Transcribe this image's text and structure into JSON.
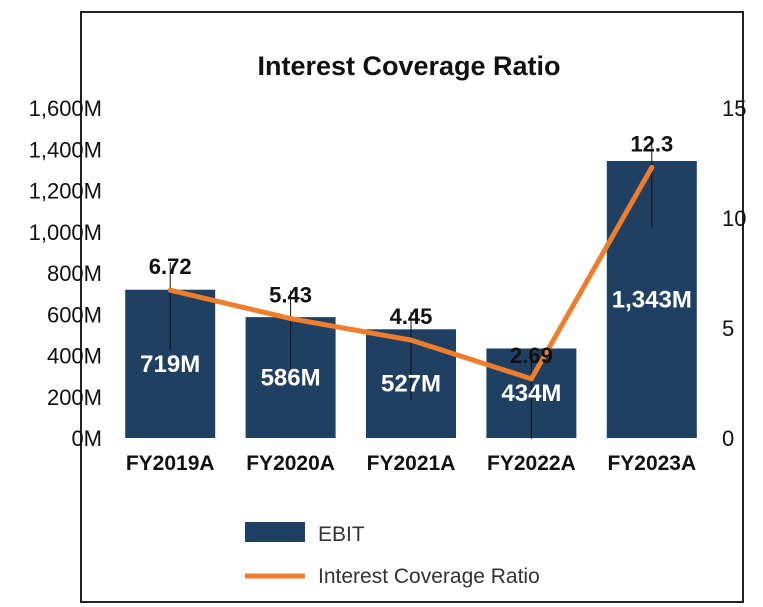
{
  "chart_data": {
    "type": "bar",
    "title": "Interest Coverage Ratio",
    "categories": [
      "FY2019A",
      "FY2020A",
      "FY2021A",
      "FY2022A",
      "FY2023A"
    ],
    "series": [
      {
        "name": "EBIT",
        "type": "bar",
        "axis": "left",
        "values": [
          719,
          586,
          527,
          434,
          1343
        ],
        "labels": [
          "719M",
          "586M",
          "527M",
          "434M",
          "1,343M"
        ],
        "color": "#1f3f63"
      },
      {
        "name": "Interest Coverage Ratio",
        "type": "line",
        "axis": "right",
        "values": [
          6.72,
          5.43,
          4.45,
          2.69,
          12.3
        ],
        "labels": [
          "6.72",
          "5.43",
          "4.45",
          "2.69",
          "12.3"
        ],
        "color": "#ef7d2b"
      }
    ],
    "y_left": {
      "ylim": [
        0,
        1600
      ],
      "ticks": [
        0,
        200,
        400,
        600,
        800,
        1000,
        1200,
        1400,
        1600
      ],
      "tick_labels": [
        "0M",
        "200M",
        "400M",
        "600M",
        "800M",
        "1,000M",
        "1,200M",
        "1,400M",
        "1,600M"
      ]
    },
    "y_right": {
      "ylim": [
        0,
        15
      ],
      "ticks": [
        0,
        5,
        10,
        15
      ],
      "tick_labels": [
        "0",
        "5",
        "10",
        "15"
      ]
    },
    "grid": false,
    "legend_position": "bottom"
  }
}
